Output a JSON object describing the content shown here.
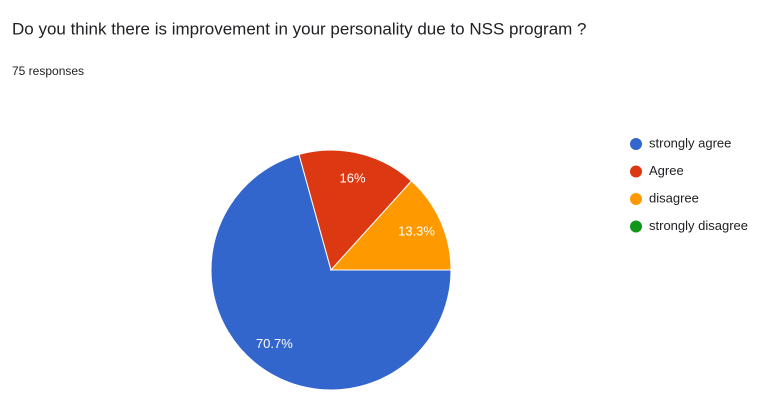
{
  "chart_data": {
    "type": "pie",
    "title": "Do you think there is improvement in your personality due to NSS program ?",
    "subtitle": "75 responses",
    "categories": [
      "strongly agree",
      "Agree",
      "disagree",
      "strongly disagree"
    ],
    "values": [
      70.7,
      16,
      13.3,
      0
    ],
    "value_labels": [
      "70.7%",
      "16%",
      "13.3%",
      null
    ],
    "colors": [
      "#3366cc",
      "#dc3912",
      "#ff9900",
      "#109618"
    ],
    "legend": "right"
  }
}
